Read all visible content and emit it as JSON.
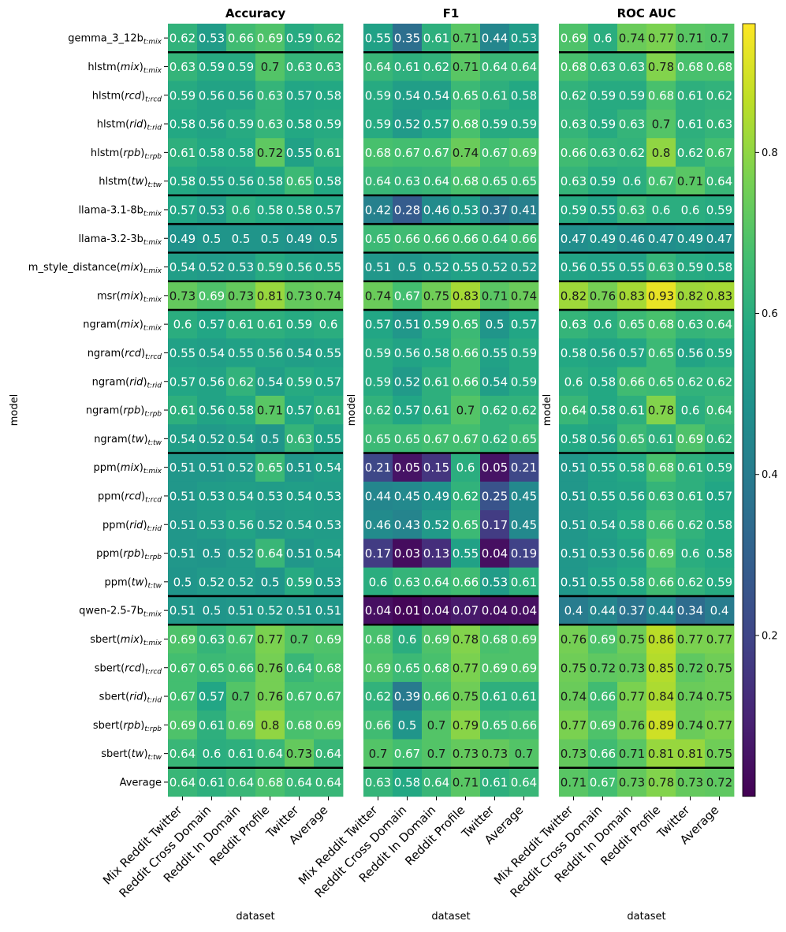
{
  "chart_data": {
    "type": "heatmap",
    "colormap": "viridis",
    "colorbar": {
      "min": 0.0,
      "max": 0.96,
      "ticks": [
        0.2,
        0.4,
        0.6,
        0.8
      ],
      "tick_labels": [
        "0.2",
        "0.4",
        "0.6",
        "0.8"
      ]
    },
    "rows": [
      {
        "base": "gemma_3_12b",
        "sub": "t:mix"
      },
      {
        "base": "hlstm(",
        "ital": "mix",
        "tail": ")",
        "sub": "t:mix"
      },
      {
        "base": "hlstm(",
        "ital": "rcd",
        "tail": ")",
        "sub": "t:rcd"
      },
      {
        "base": "hlstm(",
        "ital": "rid",
        "tail": ")",
        "sub": "t:rid"
      },
      {
        "base": "hlstm(",
        "ital": "rpb",
        "tail": ")",
        "sub": "t:rpb"
      },
      {
        "base": "hlstm(",
        "ital": "tw",
        "tail": ")",
        "sub": "t:tw"
      },
      {
        "base": "llama-3.1-8b",
        "sub": "t:mix"
      },
      {
        "base": "llama-3.2-3b",
        "sub": "t:mix"
      },
      {
        "base": "m_style_distance(",
        "ital": "mix",
        "tail": ")",
        "sub": "t:mix"
      },
      {
        "base": "msr(",
        "ital": "mix",
        "tail": ")",
        "sub": "t:mix"
      },
      {
        "base": "ngram(",
        "ital": "mix",
        "tail": ")",
        "sub": "t:mix"
      },
      {
        "base": "ngram(",
        "ital": "rcd",
        "tail": ")",
        "sub": "t:rcd"
      },
      {
        "base": "ngram(",
        "ital": "rid",
        "tail": ")",
        "sub": "t:rid"
      },
      {
        "base": "ngram(",
        "ital": "rpb",
        "tail": ")",
        "sub": "t:rpb"
      },
      {
        "base": "ngram(",
        "ital": "tw",
        "tail": ")",
        "sub": "t:tw"
      },
      {
        "base": "ppm(",
        "ital": "mix",
        "tail": ")",
        "sub": "t:mix"
      },
      {
        "base": "ppm(",
        "ital": "rcd",
        "tail": ")",
        "sub": "t:rcd"
      },
      {
        "base": "ppm(",
        "ital": "rid",
        "tail": ")",
        "sub": "t:rid"
      },
      {
        "base": "ppm(",
        "ital": "rpb",
        "tail": ")",
        "sub": "t:rpb"
      },
      {
        "base": "ppm(",
        "ital": "tw",
        "tail": ")",
        "sub": "t:tw"
      },
      {
        "base": "qwen-2.5-7b",
        "sub": "t:mix"
      },
      {
        "base": "sbert(",
        "ital": "mix",
        "tail": ")",
        "sub": "t:mix"
      },
      {
        "base": "sbert(",
        "ital": "rcd",
        "tail": ")",
        "sub": "t:rcd"
      },
      {
        "base": "sbert(",
        "ital": "rid",
        "tail": ")",
        "sub": "t:rid"
      },
      {
        "base": "sbert(",
        "ital": "rpb",
        "tail": ")",
        "sub": "t:rpb"
      },
      {
        "base": "sbert(",
        "ital": "tw",
        "tail": ")",
        "sub": "t:tw"
      },
      {
        "base": "Average"
      }
    ],
    "group_separators_after_row": [
      0,
      5,
      6,
      7,
      8,
      9,
      14,
      19,
      20,
      25
    ],
    "columns": [
      "Mix Reddit Twitter",
      "Reddit Cross Domain",
      "Reddit In Domain",
      "Reddit Profile",
      "Twitter",
      "Average"
    ],
    "xlabel": "dataset",
    "ylabel": "model",
    "panels": [
      {
        "title": "Accuracy",
        "values": [
          [
            0.62,
            0.53,
            0.66,
            0.69,
            0.59,
            0.62
          ],
          [
            0.63,
            0.59,
            0.59,
            0.7,
            0.63,
            0.63
          ],
          [
            0.59,
            0.56,
            0.56,
            0.63,
            0.57,
            0.58
          ],
          [
            0.58,
            0.56,
            0.59,
            0.63,
            0.58,
            0.59
          ],
          [
            0.61,
            0.58,
            0.58,
            0.72,
            0.55,
            0.61
          ],
          [
            0.58,
            0.55,
            0.56,
            0.58,
            0.65,
            0.58
          ],
          [
            0.57,
            0.53,
            0.6,
            0.58,
            0.58,
            0.57
          ],
          [
            0.49,
            0.5,
            0.5,
            0.5,
            0.49,
            0.5
          ],
          [
            0.54,
            0.52,
            0.53,
            0.59,
            0.56,
            0.55
          ],
          [
            0.73,
            0.69,
            0.73,
            0.81,
            0.73,
            0.74
          ],
          [
            0.6,
            0.57,
            0.61,
            0.61,
            0.59,
            0.6
          ],
          [
            0.55,
            0.54,
            0.55,
            0.56,
            0.54,
            0.55
          ],
          [
            0.57,
            0.56,
            0.62,
            0.54,
            0.59,
            0.57
          ],
          [
            0.61,
            0.56,
            0.58,
            0.71,
            0.57,
            0.61
          ],
          [
            0.54,
            0.52,
            0.54,
            0.5,
            0.63,
            0.55
          ],
          [
            0.51,
            0.51,
            0.52,
            0.65,
            0.51,
            0.54
          ],
          [
            0.51,
            0.53,
            0.54,
            0.53,
            0.54,
            0.53
          ],
          [
            0.51,
            0.53,
            0.56,
            0.52,
            0.54,
            0.53
          ],
          [
            0.51,
            0.5,
            0.52,
            0.64,
            0.51,
            0.54
          ],
          [
            0.5,
            0.52,
            0.52,
            0.5,
            0.59,
            0.53
          ],
          [
            0.51,
            0.5,
            0.51,
            0.52,
            0.51,
            0.51
          ],
          [
            0.69,
            0.63,
            0.67,
            0.77,
            0.7,
            0.69
          ],
          [
            0.67,
            0.65,
            0.66,
            0.76,
            0.64,
            0.68
          ],
          [
            0.67,
            0.57,
            0.7,
            0.76,
            0.67,
            0.67
          ],
          [
            0.69,
            0.61,
            0.69,
            0.8,
            0.68,
            0.69
          ],
          [
            0.64,
            0.6,
            0.61,
            0.64,
            0.73,
            0.64
          ],
          [
            0.64,
            0.61,
            0.64,
            0.68,
            0.64,
            0.64
          ]
        ]
      },
      {
        "title": "F1",
        "values": [
          [
            0.55,
            0.35,
            0.61,
            0.71,
            0.44,
            0.53
          ],
          [
            0.64,
            0.61,
            0.62,
            0.71,
            0.64,
            0.64
          ],
          [
            0.59,
            0.54,
            0.54,
            0.65,
            0.61,
            0.58
          ],
          [
            0.59,
            0.52,
            0.57,
            0.68,
            0.59,
            0.59
          ],
          [
            0.68,
            0.67,
            0.67,
            0.74,
            0.67,
            0.69
          ],
          [
            0.64,
            0.63,
            0.64,
            0.68,
            0.65,
            0.65
          ],
          [
            0.42,
            0.28,
            0.46,
            0.53,
            0.37,
            0.41
          ],
          [
            0.65,
            0.66,
            0.66,
            0.66,
            0.64,
            0.66
          ],
          [
            0.51,
            0.5,
            0.52,
            0.55,
            0.52,
            0.52
          ],
          [
            0.74,
            0.67,
            0.75,
            0.83,
            0.71,
            0.74
          ],
          [
            0.57,
            0.51,
            0.59,
            0.65,
            0.5,
            0.57
          ],
          [
            0.59,
            0.56,
            0.58,
            0.66,
            0.55,
            0.59
          ],
          [
            0.59,
            0.52,
            0.61,
            0.66,
            0.54,
            0.59
          ],
          [
            0.62,
            0.57,
            0.61,
            0.7,
            0.62,
            0.62
          ],
          [
            0.65,
            0.65,
            0.67,
            0.67,
            0.62,
            0.65
          ],
          [
            0.21,
            0.05,
            0.15,
            0.6,
            0.05,
            0.21
          ],
          [
            0.44,
            0.45,
            0.49,
            0.62,
            0.25,
            0.45
          ],
          [
            0.46,
            0.43,
            0.52,
            0.65,
            0.17,
            0.45
          ],
          [
            0.17,
            0.03,
            0.13,
            0.55,
            0.04,
            0.19
          ],
          [
            0.6,
            0.63,
            0.64,
            0.66,
            0.53,
            0.61
          ],
          [
            0.04,
            0.01,
            0.04,
            0.07,
            0.04,
            0.04
          ],
          [
            0.68,
            0.6,
            0.69,
            0.78,
            0.68,
            0.69
          ],
          [
            0.69,
            0.65,
            0.68,
            0.77,
            0.69,
            0.69
          ],
          [
            0.62,
            0.39,
            0.66,
            0.75,
            0.61,
            0.61
          ],
          [
            0.66,
            0.5,
            0.7,
            0.79,
            0.65,
            0.66
          ],
          [
            0.7,
            0.67,
            0.7,
            0.73,
            0.73,
            0.7
          ],
          [
            0.63,
            0.58,
            0.64,
            0.71,
            0.61,
            0.64
          ]
        ]
      },
      {
        "title": "ROC AUC",
        "values": [
          [
            0.69,
            0.6,
            0.74,
            0.77,
            0.71,
            0.7
          ],
          [
            0.68,
            0.63,
            0.63,
            0.78,
            0.68,
            0.68
          ],
          [
            0.62,
            0.59,
            0.59,
            0.68,
            0.61,
            0.62
          ],
          [
            0.63,
            0.59,
            0.63,
            0.7,
            0.61,
            0.63
          ],
          [
            0.66,
            0.63,
            0.62,
            0.8,
            0.62,
            0.67
          ],
          [
            0.63,
            0.59,
            0.6,
            0.67,
            0.71,
            0.64
          ],
          [
            0.59,
            0.55,
            0.63,
            0.6,
            0.6,
            0.59
          ],
          [
            0.47,
            0.49,
            0.46,
            0.47,
            0.49,
            0.47
          ],
          [
            0.56,
            0.55,
            0.55,
            0.63,
            0.59,
            0.58
          ],
          [
            0.82,
            0.76,
            0.83,
            0.93,
            0.82,
            0.83
          ],
          [
            0.63,
            0.6,
            0.65,
            0.68,
            0.63,
            0.64
          ],
          [
            0.58,
            0.56,
            0.57,
            0.65,
            0.56,
            0.59
          ],
          [
            0.6,
            0.58,
            0.66,
            0.65,
            0.62,
            0.62
          ],
          [
            0.64,
            0.58,
            0.61,
            0.78,
            0.6,
            0.64
          ],
          [
            0.58,
            0.56,
            0.65,
            0.61,
            0.69,
            0.62
          ],
          [
            0.51,
            0.55,
            0.58,
            0.68,
            0.61,
            0.59
          ],
          [
            0.51,
            0.55,
            0.56,
            0.63,
            0.61,
            0.57
          ],
          [
            0.51,
            0.54,
            0.58,
            0.66,
            0.62,
            0.58
          ],
          [
            0.51,
            0.53,
            0.56,
            0.69,
            0.6,
            0.58
          ],
          [
            0.51,
            0.55,
            0.58,
            0.66,
            0.62,
            0.59
          ],
          [
            0.4,
            0.44,
            0.37,
            0.44,
            0.34,
            0.4
          ],
          [
            0.76,
            0.69,
            0.75,
            0.86,
            0.77,
            0.77
          ],
          [
            0.75,
            0.72,
            0.73,
            0.85,
            0.72,
            0.75
          ],
          [
            0.74,
            0.66,
            0.77,
            0.84,
            0.74,
            0.75
          ],
          [
            0.77,
            0.69,
            0.76,
            0.89,
            0.74,
            0.77
          ],
          [
            0.73,
            0.66,
            0.71,
            0.81,
            0.81,
            0.75
          ],
          [
            0.71,
            0.67,
            0.73,
            0.78,
            0.73,
            0.72
          ]
        ]
      }
    ]
  }
}
